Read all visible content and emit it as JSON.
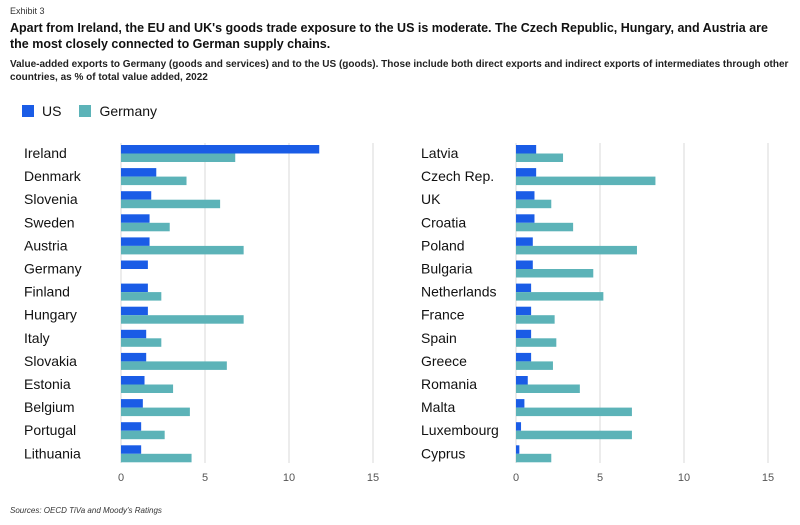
{
  "header": {
    "exhibit": "Exhibit 3",
    "title": "Apart from Ireland, the EU and UK's goods trade exposure to the US is moderate. The Czech Republic, Hungary, and Austria are the most closely connected to German supply chains.",
    "subtitle": "Value-added exports to Germany (goods and services) and to the US (goods). Those include both direct exports and indirect exports of intermediates through other countries, as % of total value added, 2022"
  },
  "legend": [
    {
      "label": "US",
      "color": "#1a5ce6"
    },
    {
      "label": "Germany",
      "color": "#5cb3b8"
    }
  ],
  "source": "Sources: OECD TiVa and Moody's Ratings",
  "chart_data": [
    {
      "type": "bar",
      "orientation": "horizontal",
      "categories": [
        "Ireland",
        "Denmark",
        "Slovenia",
        "Sweden",
        "Austria",
        "Germany",
        "Finland",
        "Hungary",
        "Italy",
        "Slovakia",
        "Estonia",
        "Belgium",
        "Portugal",
        "Lithuania"
      ],
      "series": [
        {
          "name": "US",
          "values": [
            11.8,
            2.1,
            1.8,
            1.7,
            1.7,
            1.6,
            1.6,
            1.6,
            1.5,
            1.5,
            1.4,
            1.3,
            1.2,
            1.2
          ]
        },
        {
          "name": "Germany",
          "values": [
            6.8,
            3.9,
            5.9,
            2.9,
            7.3,
            0,
            2.4,
            7.3,
            2.4,
            6.3,
            3.1,
            4.1,
            2.6,
            4.2
          ]
        }
      ],
      "xlim": [
        0,
        15
      ],
      "xticks": [
        0,
        5,
        10,
        15
      ],
      "grid": "vertical"
    },
    {
      "type": "bar",
      "orientation": "horizontal",
      "categories": [
        "Latvia",
        "Czech Rep.",
        "UK",
        "Croatia",
        "Poland",
        "Bulgaria",
        "Netherlands",
        "France",
        "Spain",
        "Greece",
        "Romania",
        "Malta",
        "Luxembourg",
        "Cyprus"
      ],
      "series": [
        {
          "name": "US",
          "values": [
            1.2,
            1.2,
            1.1,
            1.1,
            1.0,
            1.0,
            0.9,
            0.9,
            0.9,
            0.9,
            0.7,
            0.5,
            0.3,
            0.2
          ]
        },
        {
          "name": "Germany",
          "values": [
            2.8,
            8.3,
            2.1,
            3.4,
            7.2,
            4.6,
            5.2,
            2.3,
            2.4,
            2.2,
            3.8,
            6.9,
            6.9,
            2.1
          ]
        }
      ],
      "xlim": [
        0,
        15
      ],
      "xticks": [
        0,
        5,
        10,
        15
      ],
      "grid": "vertical"
    }
  ]
}
